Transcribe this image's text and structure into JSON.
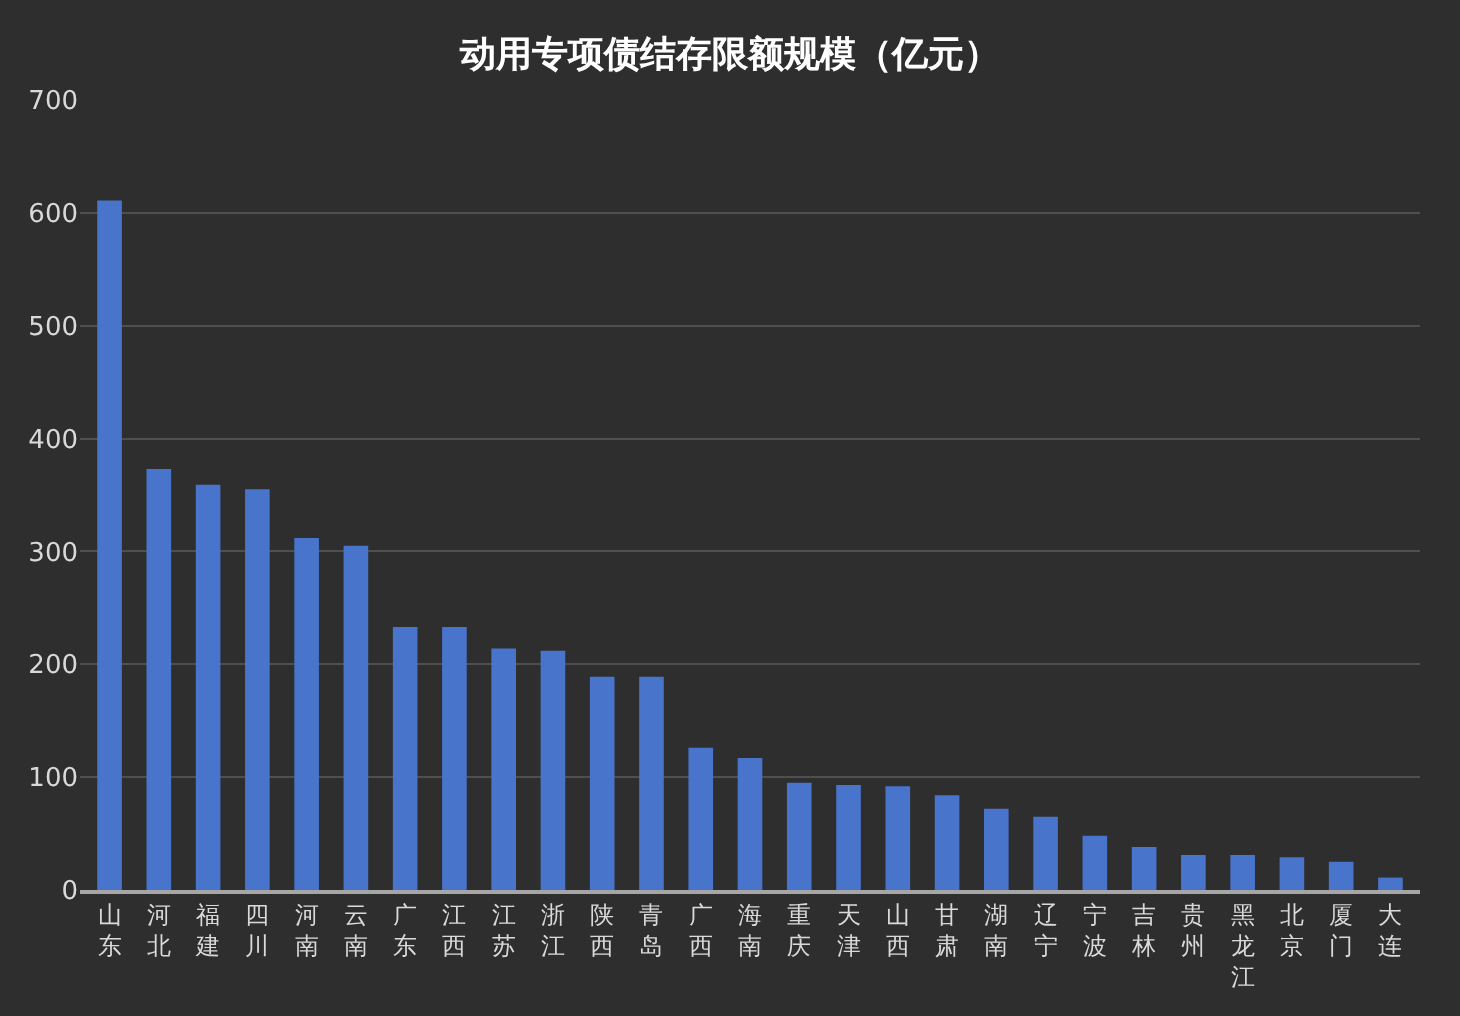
{
  "chart_data": {
    "type": "bar",
    "title": "动用专项债结存限额规模（亿元）",
    "categories": [
      "山东",
      "河北",
      "福建",
      "四川",
      "河南",
      "云南",
      "广东",
      "江西",
      "江苏",
      "浙江",
      "陕西",
      "青岛",
      "广西",
      "海南",
      "重庆",
      "天津",
      "山西",
      "甘肃",
      "湖南",
      "辽宁",
      "宁波",
      "吉林",
      "贵州",
      "黑龙江",
      "北京",
      "厦门",
      "大连"
    ],
    "values": [
      611,
      373,
      359,
      355,
      312,
      305,
      233,
      233,
      214,
      212,
      189,
      189,
      126,
      117,
      95,
      93,
      92,
      84,
      72,
      65,
      48,
      38,
      31,
      31,
      29,
      25,
      11
    ],
    "color": "#4874cc",
    "ylim": [
      0,
      700
    ],
    "yticks": [
      0,
      100,
      200,
      300,
      400,
      500,
      600,
      700
    ],
    "grid": "y",
    "legend": false
  }
}
